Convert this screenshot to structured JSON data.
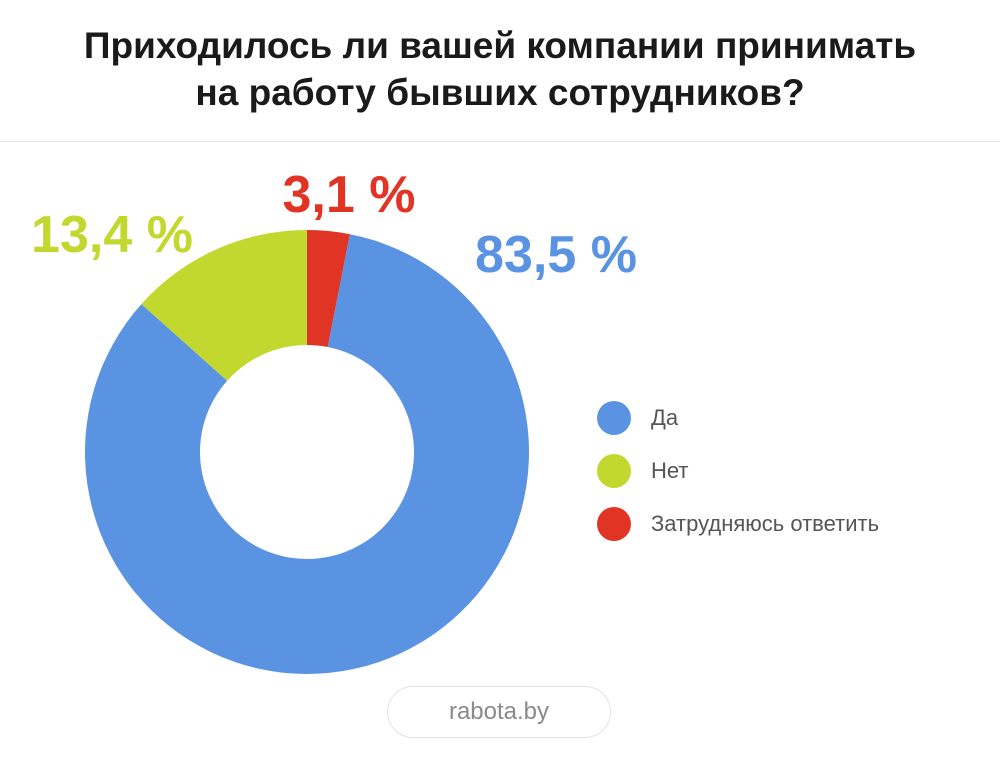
{
  "title": {
    "line1": "Приходилось ли вашей компании принимать",
    "line2": "на работу бывших сотрудников?"
  },
  "source": "rabota.by",
  "chart_data": {
    "type": "pie",
    "donut": true,
    "title": "Приходилось ли вашей компании принимать на работу бывших сотрудников?",
    "categories": [
      "Да",
      "Нет",
      "Затрудняюсь ответить"
    ],
    "values": [
      83.5,
      13.4,
      3.1
    ],
    "value_labels": [
      "83,5 %",
      "13,4 %",
      "3,1 %"
    ],
    "colors": [
      "#5b93e3",
      "#c2d82e",
      "#e03424"
    ],
    "legend_position": "right"
  }
}
